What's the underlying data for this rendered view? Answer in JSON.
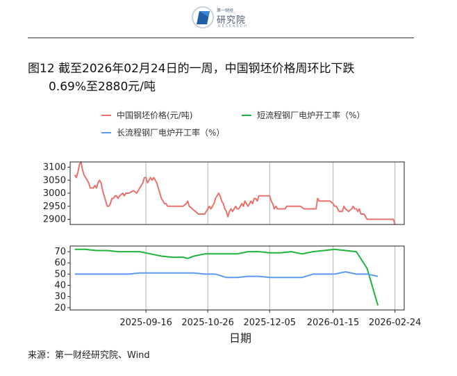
{
  "header": {
    "logo_cn": "研究院",
    "logo_top": "第一财经",
    "logo_en": "RESEARCH"
  },
  "title": {
    "line1": "图12  截至2026年02月24日的一周，中国钢坯价格周环比下跌",
    "line2": "0.69%至2880元/吨"
  },
  "footer": {
    "source": "来源：第一财经研究院、Wind"
  },
  "chart_data": {
    "type": "line",
    "xlabel": "日期",
    "x_ticks": [
      "2025-09-16",
      "2025-10-26",
      "2025-12-05",
      "2026-01-15",
      "2026-02-24"
    ],
    "x_range": [
      "2025-07-29",
      "2026-03-02"
    ],
    "colors": {
      "billet": "#e8716d",
      "short": "#1fb33c",
      "long": "#5b9bf0"
    },
    "legend": [
      "中国钢坯价格(元/吨)",
      "短流程钢厂电炉开工率（%）",
      "长流程钢厂电炉开工率（%）"
    ],
    "panels": [
      {
        "ylim": [
          2880,
          3120
        ],
        "yticks": [
          2900,
          2950,
          3000,
          3050,
          3100
        ],
        "series": [
          {
            "name": "中国钢坯价格(元/吨)",
            "color": "#e8716d",
            "points": [
              [
                "2025-08-01",
                3070
              ],
              [
                "2025-08-02",
                3060
              ],
              [
                "2025-08-03",
                3080
              ],
              [
                "2025-08-04",
                3110
              ],
              [
                "2025-08-05",
                3120
              ],
              [
                "2025-08-06",
                3090
              ],
              [
                "2025-08-07",
                3070
              ],
              [
                "2025-08-08",
                3060
              ],
              [
                "2025-08-09",
                3050
              ],
              [
                "2025-08-10",
                3040
              ],
              [
                "2025-08-11",
                3020
              ],
              [
                "2025-08-12",
                3020
              ],
              [
                "2025-08-13",
                3020
              ],
              [
                "2025-08-14",
                3030
              ],
              [
                "2025-08-15",
                3020
              ],
              [
                "2025-08-16",
                3040
              ],
              [
                "2025-08-17",
                3050
              ],
              [
                "2025-08-18",
                3040
              ],
              [
                "2025-08-19",
                3010
              ],
              [
                "2025-08-20",
                2990
              ],
              [
                "2025-08-21",
                2970
              ],
              [
                "2025-08-22",
                2950
              ],
              [
                "2025-08-23",
                2950
              ],
              [
                "2025-08-24",
                2960
              ],
              [
                "2025-08-25",
                2980
              ],
              [
                "2025-08-26",
                2980
              ],
              [
                "2025-08-27",
                2990
              ],
              [
                "2025-08-28",
                2990
              ],
              [
                "2025-08-29",
                2980
              ],
              [
                "2025-08-30",
                2990
              ],
              [
                "2025-09-01",
                3000
              ],
              [
                "2025-09-02",
                2990
              ],
              [
                "2025-09-03",
                3000
              ],
              [
                "2025-09-05",
                3000
              ],
              [
                "2025-09-08",
                3010
              ],
              [
                "2025-09-10",
                3000
              ],
              [
                "2025-09-12",
                3020
              ],
              [
                "2025-09-14",
                3040
              ],
              [
                "2025-09-15",
                3060
              ],
              [
                "2025-09-16",
                3060
              ],
              [
                "2025-09-17",
                3040
              ],
              [
                "2025-09-18",
                3050
              ],
              [
                "2025-09-19",
                3060
              ],
              [
                "2025-09-20",
                3050
              ],
              [
                "2025-09-21",
                3060
              ],
              [
                "2025-09-22",
                3050
              ],
              [
                "2025-09-23",
                3040
              ],
              [
                "2025-09-24",
                3020
              ],
              [
                "2025-09-25",
                3000
              ],
              [
                "2025-09-26",
                2980
              ],
              [
                "2025-09-27",
                2970
              ],
              [
                "2025-09-28",
                2960
              ],
              [
                "2025-09-29",
                2960
              ],
              [
                "2025-09-30",
                2950
              ],
              [
                "2025-10-05",
                2950
              ],
              [
                "2025-10-08",
                2950
              ],
              [
                "2025-10-10",
                2950
              ],
              [
                "2025-10-12",
                2960
              ],
              [
                "2025-10-13",
                2970
              ],
              [
                "2025-10-14",
                2950
              ],
              [
                "2025-10-16",
                2940
              ],
              [
                "2025-10-18",
                2930
              ],
              [
                "2025-10-20",
                2920
              ],
              [
                "2025-10-22",
                2920
              ],
              [
                "2025-10-24",
                2920
              ],
              [
                "2025-10-25",
                2930
              ],
              [
                "2025-10-26",
                2940
              ],
              [
                "2025-10-27",
                2950
              ],
              [
                "2025-10-28",
                2940
              ],
              [
                "2025-10-29",
                2950
              ],
              [
                "2025-10-30",
                2960
              ],
              [
                "2025-10-31",
                2980
              ],
              [
                "2025-11-01",
                2990
              ],
              [
                "2025-11-02",
                3000
              ],
              [
                "2025-11-03",
                2990
              ],
              [
                "2025-11-04",
                2970
              ],
              [
                "2025-11-05",
                2960
              ],
              [
                "2025-11-06",
                2940
              ],
              [
                "2025-11-07",
                2930
              ],
              [
                "2025-11-08",
                2910
              ],
              [
                "2025-11-09",
                2930
              ],
              [
                "2025-11-10",
                2940
              ],
              [
                "2025-11-11",
                2930
              ],
              [
                "2025-11-12",
                2940
              ],
              [
                "2025-11-13",
                2950
              ],
              [
                "2025-11-14",
                2940
              ],
              [
                "2025-11-15",
                2940
              ],
              [
                "2025-11-16",
                2950
              ],
              [
                "2025-11-17",
                2960
              ],
              [
                "2025-11-18",
                2950
              ],
              [
                "2025-11-19",
                2970
              ],
              [
                "2025-11-20",
                2960
              ],
              [
                "2025-11-21",
                2950
              ],
              [
                "2025-11-22",
                2960
              ],
              [
                "2025-11-23",
                2970
              ],
              [
                "2025-11-24",
                2960
              ],
              [
                "2025-11-25",
                2980
              ],
              [
                "2025-11-26",
                2980
              ],
              [
                "2025-11-27",
                2970
              ],
              [
                "2025-11-28",
                2990
              ],
              [
                "2025-11-29",
                2990
              ],
              [
                "2025-12-01",
                2990
              ],
              [
                "2025-12-03",
                2990
              ],
              [
                "2025-12-05",
                2990
              ],
              [
                "2025-12-06",
                2970
              ],
              [
                "2025-12-07",
                2960
              ],
              [
                "2025-12-08",
                2940
              ],
              [
                "2025-12-09",
                2950
              ],
              [
                "2025-12-10",
                2940
              ],
              [
                "2025-12-13",
                2940
              ],
              [
                "2025-12-15",
                2940
              ],
              [
                "2025-12-16",
                2950
              ],
              [
                "2025-12-18",
                2950
              ],
              [
                "2025-12-22",
                2950
              ],
              [
                "2025-12-25",
                2950
              ],
              [
                "2025-12-27",
                2940
              ],
              [
                "2025-12-30",
                2940
              ],
              [
                "2026-01-02",
                2940
              ],
              [
                "2026-01-04",
                2940
              ],
              [
                "2026-01-05",
                2980
              ],
              [
                "2026-01-06",
                2970
              ],
              [
                "2026-01-10",
                2970
              ],
              [
                "2026-01-13",
                2970
              ],
              [
                "2026-01-15",
                2960
              ],
              [
                "2026-01-16",
                2950
              ],
              [
                "2026-01-17",
                2950
              ],
              [
                "2026-01-18",
                2940
              ],
              [
                "2026-01-19",
                2930
              ],
              [
                "2026-01-21",
                2930
              ],
              [
                "2026-01-22",
                2950
              ],
              [
                "2026-01-23",
                2940
              ],
              [
                "2026-01-25",
                2930
              ],
              [
                "2026-01-27",
                2940
              ],
              [
                "2026-01-28",
                2950
              ],
              [
                "2026-01-29",
                2940
              ],
              [
                "2026-01-30",
                2940
              ],
              [
                "2026-01-31",
                2930
              ],
              [
                "2026-02-01",
                2940
              ],
              [
                "2026-02-02",
                2920
              ],
              [
                "2026-02-04",
                2920
              ],
              [
                "2026-02-05",
                2910
              ],
              [
                "2026-02-06",
                2900
              ],
              [
                "2026-02-10",
                2900
              ],
              [
                "2026-02-15",
                2900
              ],
              [
                "2026-02-20",
                2900
              ],
              [
                "2026-02-23",
                2900
              ],
              [
                "2026-02-24",
                2880
              ]
            ]
          }
        ]
      },
      {
        "ylim": [
          18,
          75
        ],
        "yticks": [
          20,
          30,
          40,
          50,
          60,
          70
        ],
        "series": [
          {
            "name": "短流程钢厂电炉开工率（%）",
            "color": "#1fb33c",
            "points": [
              [
                "2025-08-01",
                72
              ],
              [
                "2025-08-08",
                72
              ],
              [
                "2025-08-15",
                71
              ],
              [
                "2025-08-22",
                71
              ],
              [
                "2025-08-29",
                70
              ],
              [
                "2025-09-05",
                70
              ],
              [
                "2025-09-12",
                70
              ],
              [
                "2025-09-19",
                68
              ],
              [
                "2025-09-26",
                66
              ],
              [
                "2025-10-03",
                65
              ],
              [
                "2025-10-10",
                65
              ],
              [
                "2025-10-13",
                64
              ],
              [
                "2025-10-17",
                66
              ],
              [
                "2025-10-24",
                68
              ],
              [
                "2025-10-31",
                68
              ],
              [
                "2025-11-07",
                68
              ],
              [
                "2025-11-14",
                68
              ],
              [
                "2025-11-21",
                70
              ],
              [
                "2025-11-28",
                70
              ],
              [
                "2025-12-05",
                69
              ],
              [
                "2025-12-12",
                69
              ],
              [
                "2025-12-19",
                70
              ],
              [
                "2025-12-26",
                68
              ],
              [
                "2026-01-02",
                70
              ],
              [
                "2026-01-09",
                71
              ],
              [
                "2026-01-16",
                72
              ],
              [
                "2026-01-23",
                71
              ],
              [
                "2026-01-30",
                70
              ],
              [
                "2026-02-06",
                55
              ],
              [
                "2026-02-13",
                22
              ]
            ]
          },
          {
            "name": "长流程钢厂电炉开工率（%）",
            "color": "#5b9bf0",
            "points": [
              [
                "2025-08-01",
                50
              ],
              [
                "2025-08-08",
                50
              ],
              [
                "2025-08-15",
                50
              ],
              [
                "2025-08-22",
                50
              ],
              [
                "2025-08-29",
                50
              ],
              [
                "2025-09-05",
                50
              ],
              [
                "2025-09-12",
                51
              ],
              [
                "2025-09-19",
                51
              ],
              [
                "2025-09-26",
                51
              ],
              [
                "2025-10-03",
                51
              ],
              [
                "2025-10-10",
                51
              ],
              [
                "2025-10-17",
                51
              ],
              [
                "2025-10-24",
                50
              ],
              [
                "2025-10-31",
                50
              ],
              [
                "2025-11-07",
                47
              ],
              [
                "2025-11-14",
                47
              ],
              [
                "2025-11-21",
                48
              ],
              [
                "2025-11-28",
                48
              ],
              [
                "2025-12-05",
                47
              ],
              [
                "2025-12-12",
                47
              ],
              [
                "2025-12-19",
                47
              ],
              [
                "2025-12-26",
                47
              ],
              [
                "2026-01-02",
                50
              ],
              [
                "2026-01-09",
                50
              ],
              [
                "2026-01-16",
                50
              ],
              [
                "2026-01-23",
                52
              ],
              [
                "2026-01-30",
                50
              ],
              [
                "2026-02-06",
                50
              ],
              [
                "2026-02-13",
                48
              ]
            ]
          }
        ]
      }
    ]
  }
}
